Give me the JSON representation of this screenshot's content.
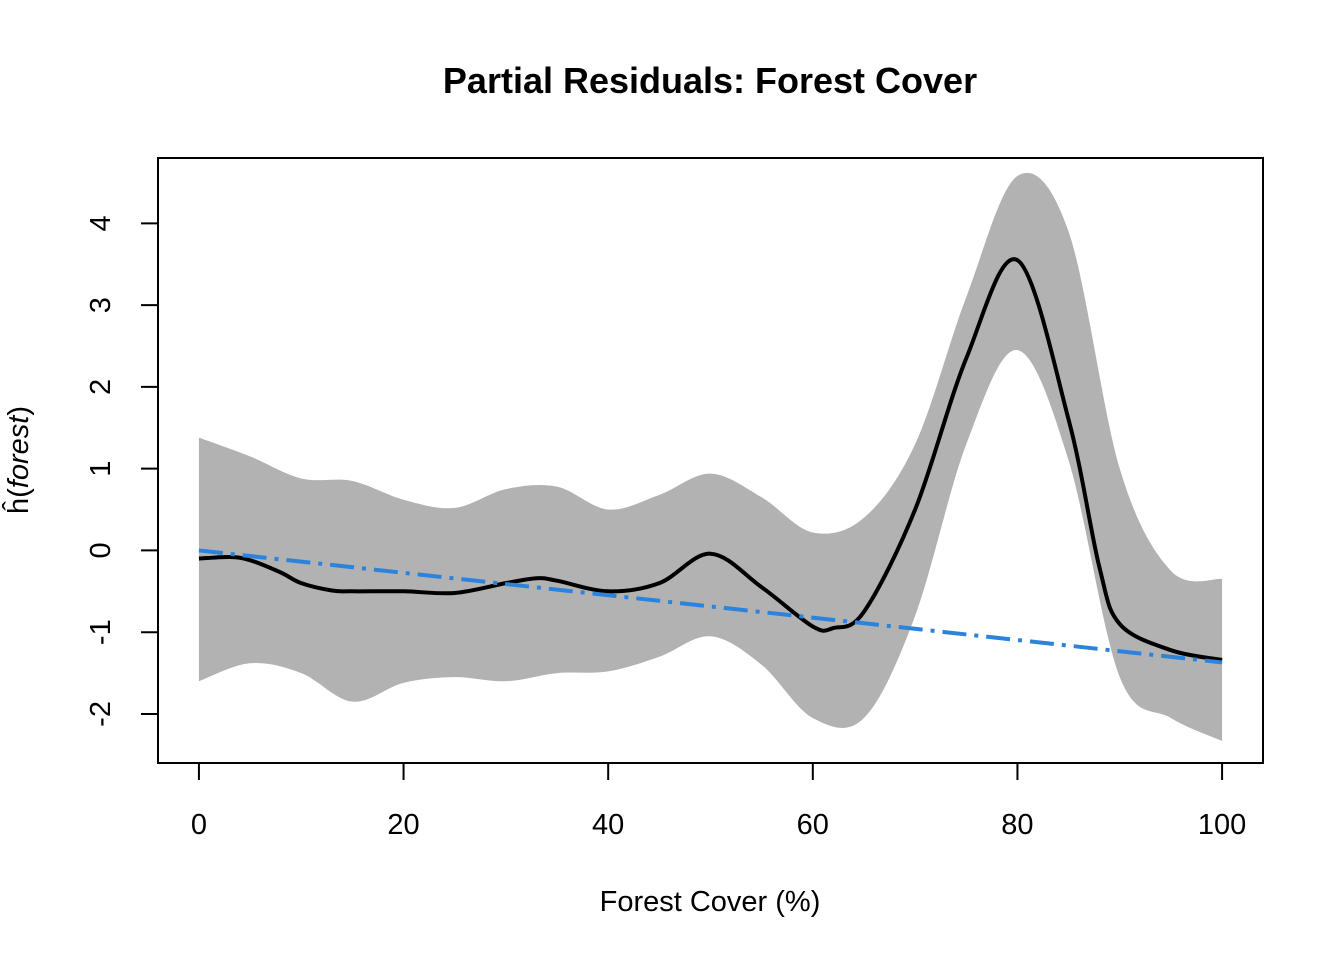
{
  "chart_data": {
    "type": "line",
    "title": "Partial Residuals: Forest Cover",
    "xlabel": "Forest Cover (%)",
    "ylabel": {
      "prefix": "ĥ(",
      "var": "forest",
      "suffix": ")"
    },
    "xlim": [
      -4,
      104
    ],
    "ylim": [
      -2.6,
      4.8
    ],
    "x_ticks": [
      0,
      20,
      40,
      60,
      80,
      100
    ],
    "y_ticks": [
      -2,
      -1,
      0,
      1,
      2,
      3,
      4
    ],
    "band": {
      "name": "",
      "color": "#b2b2b2",
      "x": [
        0,
        5,
        10,
        15,
        20,
        25,
        30,
        35,
        40,
        45,
        50,
        55,
        60,
        65,
        70,
        75,
        80,
        85,
        90,
        95,
        100
      ],
      "upper": [
        1.38,
        1.15,
        0.88,
        0.85,
        0.62,
        0.52,
        0.75,
        0.78,
        0.5,
        0.68,
        0.94,
        0.65,
        0.22,
        0.4,
        1.3,
        3.1,
        4.58,
        3.9,
        1.0,
        -0.25,
        -0.35
      ],
      "lower": [
        -1.6,
        -1.38,
        -1.5,
        -1.85,
        -1.62,
        -1.55,
        -1.6,
        -1.5,
        -1.48,
        -1.3,
        -1.05,
        -1.4,
        -2.05,
        -2.05,
        -0.8,
        1.3,
        2.45,
        1.1,
        -1.55,
        -2.05,
        -2.33
      ]
    },
    "series": [
      {
        "name": "",
        "color": "#000000",
        "style": "solid",
        "x": [
          0,
          3,
          5,
          8,
          10,
          13,
          15,
          20,
          25,
          30,
          33,
          35,
          40,
          45,
          50,
          55,
          60,
          62,
          65,
          70,
          75,
          80,
          85,
          88,
          90,
          95,
          100
        ],
        "y": [
          -0.1,
          -0.08,
          -0.12,
          -0.27,
          -0.4,
          -0.49,
          -0.5,
          -0.5,
          -0.52,
          -0.4,
          -0.34,
          -0.37,
          -0.5,
          -0.4,
          -0.04,
          -0.45,
          -0.93,
          -0.95,
          -0.75,
          0.5,
          2.35,
          3.55,
          1.6,
          -0.2,
          -0.9,
          -1.22,
          -1.34
        ]
      },
      {
        "name": "",
        "color": "#2b83dc",
        "style": "dashdot",
        "x": [
          0,
          100
        ],
        "y": [
          0.0,
          -1.37
        ]
      }
    ],
    "grid": false,
    "legend": "none"
  }
}
